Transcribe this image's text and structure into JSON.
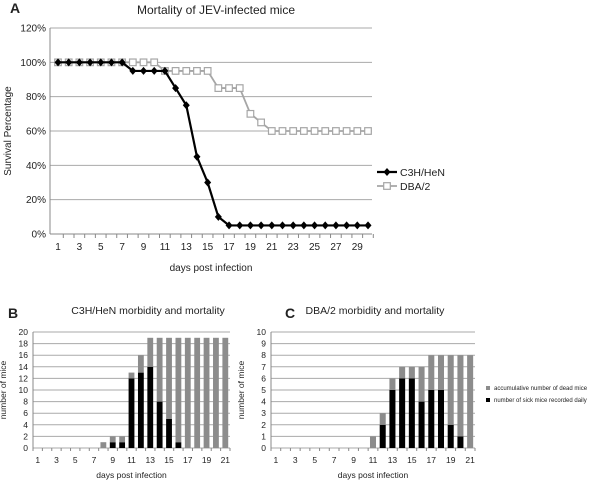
{
  "chart_data": [
    {
      "panel": "A",
      "type": "line",
      "title": "Mortality of JEV-infected mice",
      "xlabel": "days post infection",
      "ylabel": "Survival Percentage",
      "ylim": [
        0,
        120
      ],
      "yticks": [
        "0%",
        "20%",
        "40%",
        "60%",
        "80%",
        "100%",
        "120%"
      ],
      "x": [
        1,
        2,
        3,
        4,
        5,
        6,
        7,
        8,
        9,
        10,
        11,
        12,
        13,
        14,
        15,
        16,
        17,
        18,
        19,
        20,
        21,
        22,
        23,
        24,
        25,
        26,
        27,
        28,
        29,
        30
      ],
      "xtick_labels": [
        "1",
        "3",
        "5",
        "7",
        "9",
        "11",
        "13",
        "15",
        "17",
        "19",
        "21",
        "23",
        "25",
        "27",
        "29"
      ],
      "grid": "horizontal",
      "legend": "right",
      "series": [
        {
          "name": "C3H/HeN",
          "color": "#000000",
          "marker": "diamond",
          "values": [
            100,
            100,
            100,
            100,
            100,
            100,
            100,
            95,
            95,
            95,
            95,
            85,
            75,
            45,
            30,
            10,
            5,
            5,
            5,
            5,
            5,
            5,
            5,
            5,
            5,
            5,
            5,
            5,
            5,
            5
          ]
        },
        {
          "name": "DBA/2",
          "color": "#a6a6a6",
          "marker": "open-square",
          "values": [
            100,
            100,
            100,
            100,
            100,
            100,
            100,
            100,
            100,
            100,
            95,
            95,
            95,
            95,
            95,
            85,
            85,
            85,
            70,
            65,
            60,
            60,
            60,
            60,
            60,
            60,
            60,
            60,
            60,
            60
          ]
        }
      ]
    },
    {
      "panel": "B",
      "type": "bar",
      "stacked": true,
      "title": "C3H/HeN morbidity and mortality",
      "xlabel": "days post infection",
      "ylabel": "number of mice",
      "ylim": [
        0,
        20
      ],
      "yticks": [
        "0",
        "2",
        "4",
        "6",
        "8",
        "10",
        "12",
        "14",
        "16",
        "18",
        "20"
      ],
      "categories": [
        1,
        2,
        3,
        4,
        5,
        6,
        7,
        8,
        9,
        10,
        11,
        12,
        13,
        14,
        15,
        16,
        17,
        18,
        19,
        20,
        21
      ],
      "xtick_labels": [
        "1",
        "3",
        "5",
        "7",
        "9",
        "11",
        "13",
        "15",
        "17",
        "19",
        "21"
      ],
      "series": [
        {
          "name": "number of sick mice recorded daily",
          "color": "#000000",
          "values": [
            0,
            0,
            0,
            0,
            0,
            0,
            0,
            0,
            1,
            1,
            12,
            13,
            14,
            8,
            5,
            1,
            0,
            0,
            0,
            0,
            0
          ]
        },
        {
          "name": "accumulative number of dead mice",
          "color": "#8c8c8c",
          "values": [
            0,
            0,
            0,
            0,
            0,
            0,
            0,
            1,
            1,
            1,
            1,
            3,
            5,
            11,
            14,
            18,
            19,
            19,
            19,
            19,
            19
          ]
        }
      ]
    },
    {
      "panel": "C",
      "type": "bar",
      "stacked": true,
      "title": "DBA/2 morbidity and mortality",
      "xlabel": "days post infection",
      "ylabel": "number of mice",
      "ylim": [
        0,
        10
      ],
      "yticks": [
        "0",
        "1",
        "2",
        "3",
        "4",
        "5",
        "6",
        "7",
        "8",
        "9",
        "10"
      ],
      "categories": [
        1,
        2,
        3,
        4,
        5,
        6,
        7,
        8,
        9,
        10,
        11,
        12,
        13,
        14,
        15,
        16,
        17,
        18,
        19,
        20,
        21
      ],
      "xtick_labels": [
        "1",
        "3",
        "5",
        "7",
        "9",
        "11",
        "13",
        "15",
        "17",
        "19",
        "21"
      ],
      "legend": "right",
      "series": [
        {
          "name": "number of sick mice recorded daily",
          "color": "#000000",
          "values": [
            0,
            0,
            0,
            0,
            0,
            0,
            0,
            0,
            0,
            0,
            0,
            2,
            5,
            6,
            6,
            4,
            5,
            5,
            2,
            1,
            0
          ]
        },
        {
          "name": "accumulative number of dead mice",
          "color": "#8c8c8c",
          "values": [
            0,
            0,
            0,
            0,
            0,
            0,
            0,
            0,
            0,
            0,
            1,
            1,
            1,
            1,
            1,
            3,
            3,
            3,
            6,
            7,
            8
          ]
        }
      ]
    }
  ]
}
